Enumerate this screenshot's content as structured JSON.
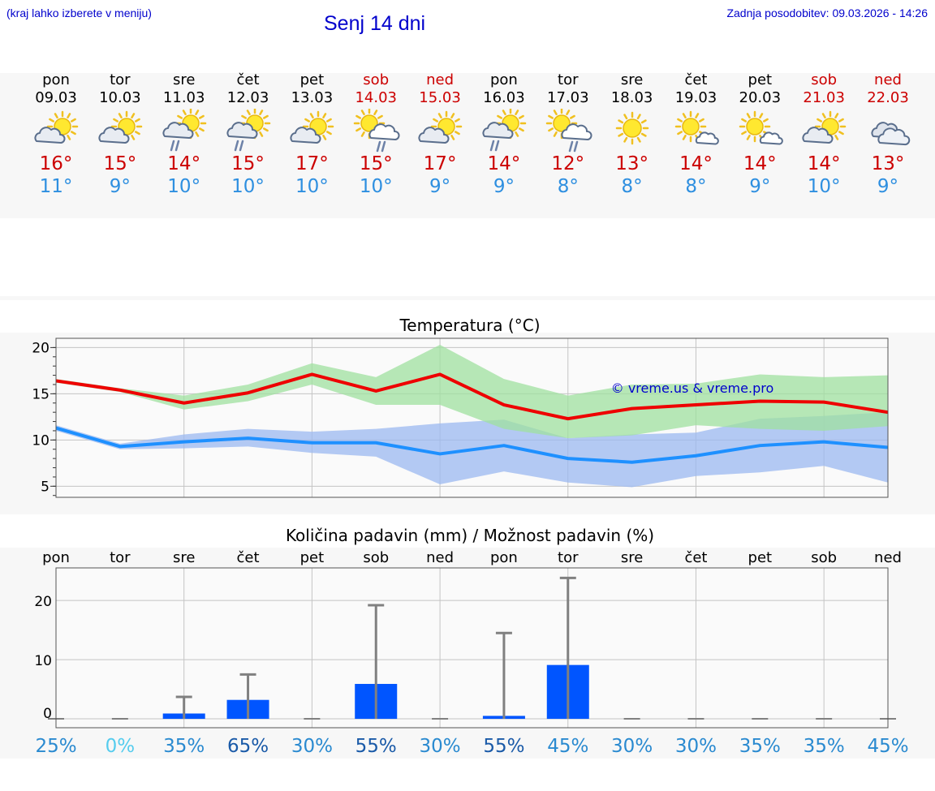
{
  "header": {
    "left_note": "(kraj lahko izberete v meniju)",
    "title": "Senj 14 dni",
    "updated": "Zadnja posodobitev: 09.03.2026 - 14:26"
  },
  "days": [
    {
      "name": "pon",
      "date": "09.03",
      "weekend": false,
      "icon": "partly-cloudy-sun-icon",
      "tmax": "16°",
      "tmin": "11°"
    },
    {
      "name": "tor",
      "date": "10.03",
      "weekend": false,
      "icon": "partly-cloudy-sun-icon",
      "tmax": "15°",
      "tmin": "9°"
    },
    {
      "name": "sre",
      "date": "11.03",
      "weekend": false,
      "icon": "sun-cloud-rain-icon",
      "tmax": "14°",
      "tmin": "10°"
    },
    {
      "name": "čet",
      "date": "12.03",
      "weekend": false,
      "icon": "sun-cloud-rain-icon",
      "tmax": "15°",
      "tmin": "10°"
    },
    {
      "name": "pet",
      "date": "13.03",
      "weekend": false,
      "icon": "partly-cloudy-sun-icon",
      "tmax": "17°",
      "tmin": "10°"
    },
    {
      "name": "sob",
      "date": "14.03",
      "weekend": true,
      "icon": "sun-rain-cloud-icon",
      "tmax": "15°",
      "tmin": "10°"
    },
    {
      "name": "ned",
      "date": "15.03",
      "weekend": true,
      "icon": "partly-cloudy-sun-icon",
      "tmax": "17°",
      "tmin": "9°"
    },
    {
      "name": "pon",
      "date": "16.03",
      "weekend": false,
      "icon": "sun-cloud-rain-icon",
      "tmax": "14°",
      "tmin": "9°"
    },
    {
      "name": "tor",
      "date": "17.03",
      "weekend": false,
      "icon": "sun-rain-cloud-icon",
      "tmax": "12°",
      "tmin": "8°"
    },
    {
      "name": "sre",
      "date": "18.03",
      "weekend": false,
      "icon": "sun-icon",
      "tmax": "13°",
      "tmin": "8°"
    },
    {
      "name": "čet",
      "date": "19.03",
      "weekend": false,
      "icon": "sun-small-cloud-icon",
      "tmax": "14°",
      "tmin": "8°"
    },
    {
      "name": "pet",
      "date": "20.03",
      "weekend": false,
      "icon": "sun-small-cloud-icon",
      "tmax": "14°",
      "tmin": "9°"
    },
    {
      "name": "sob",
      "date": "21.03",
      "weekend": true,
      "icon": "partly-cloudy-sun-icon",
      "tmax": "14°",
      "tmin": "10°"
    },
    {
      "name": "ned",
      "date": "22.03",
      "weekend": true,
      "icon": "cloudy-icon",
      "tmax": "13°",
      "tmin": "9°"
    }
  ],
  "colors": {
    "max_line": "#ee0000",
    "max_band": "#9fe09f",
    "min_line": "#1e90ff",
    "min_band": "#9bb8f0",
    "precip_bar": "#0055ff",
    "error_bar": "#808080",
    "weekend": "#cc0000",
    "title_blue": "#0000cc"
  },
  "chart_data": [
    {
      "type": "line",
      "title": "Temperatura (°C)",
      "watermark": "© vreme.us & vreme.pro",
      "x": [
        0,
        1,
        2,
        3,
        4,
        5,
        6,
        7,
        8,
        9,
        10,
        11,
        12,
        13
      ],
      "ylim": [
        3.8,
        21
      ],
      "yticks": [
        5,
        10,
        15,
        20
      ],
      "grid": true,
      "series": [
        {
          "name": "max",
          "values": [
            16.4,
            15.4,
            14.0,
            15.1,
            17.1,
            15.3,
            17.1,
            13.8,
            12.3,
            13.4,
            13.8,
            14.2,
            14.1,
            13.0
          ],
          "band_low": [
            16.2,
            15.2,
            13.3,
            14.2,
            16.0,
            13.8,
            13.8,
            11.2,
            10.2,
            10.5,
            11.6,
            11.2,
            11.0,
            11.5
          ],
          "band_high": [
            16.6,
            15.6,
            14.8,
            16.0,
            18.3,
            16.8,
            20.3,
            16.6,
            14.8,
            16.0,
            16.1,
            17.1,
            16.8,
            17.0
          ]
        },
        {
          "name": "min",
          "values": [
            11.3,
            9.3,
            9.8,
            10.2,
            9.7,
            9.7,
            8.5,
            9.4,
            8.0,
            7.6,
            8.3,
            9.4,
            9.8,
            9.2
          ],
          "band_low": [
            11.0,
            9.0,
            9.1,
            9.3,
            8.6,
            8.2,
            5.2,
            6.6,
            5.4,
            4.9,
            6.1,
            6.5,
            7.2,
            5.4
          ],
          "band_high": [
            11.6,
            9.6,
            10.6,
            11.2,
            10.9,
            11.2,
            11.8,
            12.2,
            10.2,
            10.6,
            10.8,
            12.3,
            12.6,
            13.0
          ]
        }
      ]
    },
    {
      "type": "bar",
      "title": "Količina padavin (mm) / Možnost padavin (%)",
      "categories": [
        "pon",
        "tor",
        "sre",
        "čet",
        "pet",
        "sob",
        "ned",
        "pon",
        "tor",
        "sre",
        "čet",
        "pet",
        "sob",
        "ned"
      ],
      "values": [
        0,
        0,
        0.9,
        3.2,
        0,
        5.9,
        0,
        0.5,
        9.1,
        0,
        0,
        0,
        0,
        0
      ],
      "error_high": [
        0,
        0,
        3.7,
        7.5,
        0,
        19.2,
        0,
        14.5,
        23.8,
        0,
        0,
        0,
        0,
        0
      ],
      "chance": [
        "25%",
        "0%",
        "35%",
        "65%",
        "30%",
        "55%",
        "30%",
        "55%",
        "45%",
        "30%",
        "30%",
        "35%",
        "35%",
        "45%"
      ],
      "ylim": [
        -1.5,
        25.5
      ],
      "yticks": [
        0,
        10,
        20
      ],
      "grid": true
    }
  ]
}
